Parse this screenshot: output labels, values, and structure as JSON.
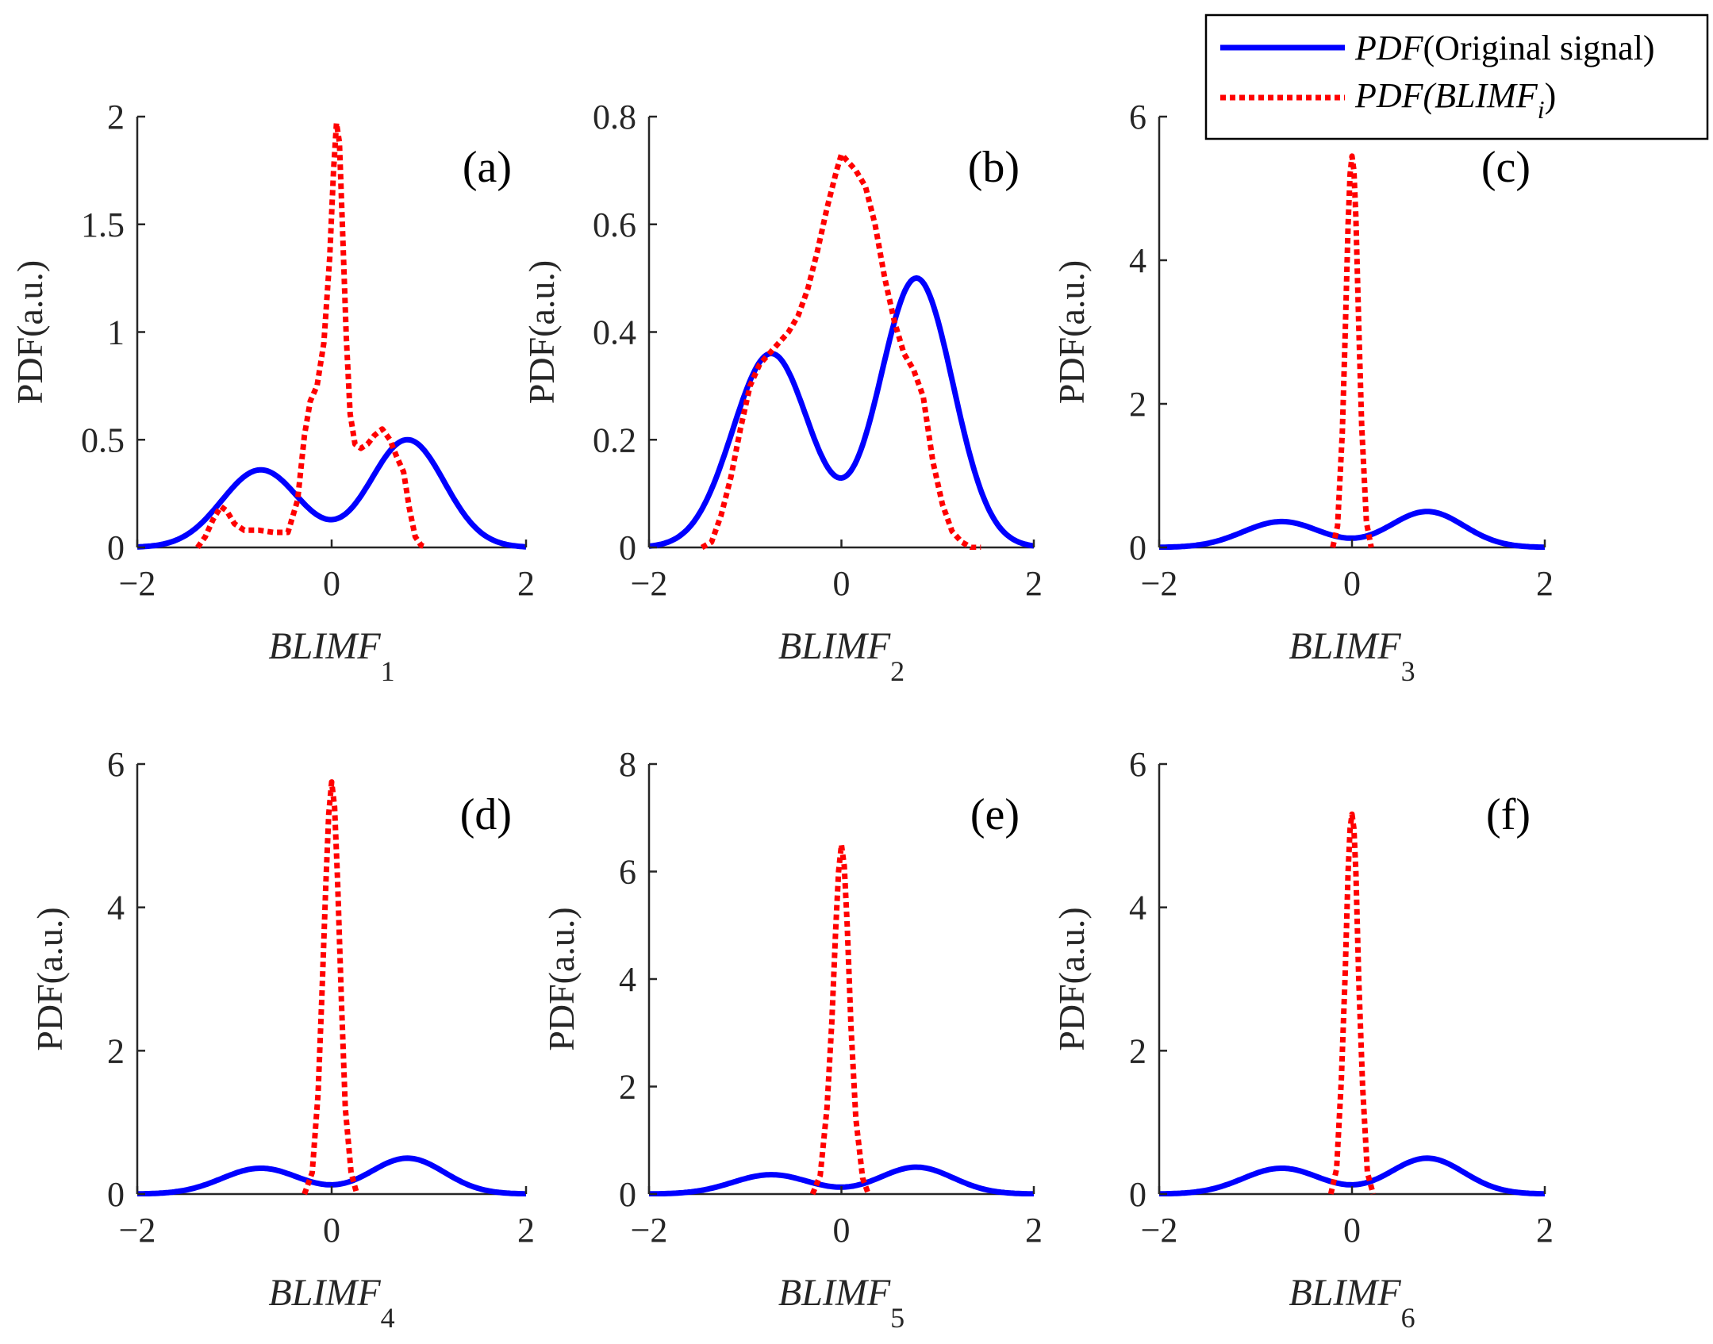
{
  "figure": {
    "legend": {
      "entries": [
        {
          "name_italic": "PDF",
          "name_rest": "(Original signal)",
          "color": "#0000ff",
          "style": "solid"
        },
        {
          "name_italic": "PDF",
          "name_rest_italic": "(BLIMF",
          "subscript": "i",
          "close": ")",
          "color": "#ff0000",
          "style": "dotted"
        }
      ]
    }
  },
  "chart_data": [
    {
      "type": "line",
      "label": "(a)",
      "ylabel": "PDF(a.u.)",
      "xlabel": "BLIMF",
      "xlabel_sub": "1",
      "xlim": [
        -2,
        2
      ],
      "ylim": [
        0,
        2
      ],
      "xticks": [
        -2,
        0,
        2
      ],
      "xtick_labels": [
        "−2",
        "0",
        "2"
      ],
      "yticks": [
        0,
        0.5,
        1,
        1.5,
        2
      ],
      "ytick_labels": [
        "0",
        "0.5",
        "1",
        "1.5",
        "2"
      ],
      "series": [
        {
          "name": "PDF(Original signal)",
          "color": "#0000ff",
          "style": "solid",
          "kind": "bimodal"
        },
        {
          "name": "PDF(BLIMF_i)",
          "color": "#ff0000",
          "style": "dotted",
          "x": [
            -1.38,
            -1.3,
            -1.22,
            -1.14,
            -1.08,
            -1.0,
            -0.9,
            -0.75,
            -0.6,
            -0.45,
            -0.35,
            -0.28,
            -0.22,
            -0.15,
            -0.08,
            -0.02,
            0.02,
            0.05,
            0.08,
            0.11,
            0.15,
            0.19,
            0.24,
            0.3,
            0.37,
            0.44,
            0.52,
            0.6,
            0.67,
            0.74,
            0.8,
            0.86,
            0.92,
            0.98
          ],
          "y": [
            0.0,
            0.05,
            0.13,
            0.19,
            0.17,
            0.11,
            0.08,
            0.08,
            0.07,
            0.07,
            0.22,
            0.52,
            0.68,
            0.75,
            0.95,
            1.35,
            1.75,
            1.97,
            1.88,
            1.5,
            0.98,
            0.62,
            0.48,
            0.46,
            0.48,
            0.52,
            0.55,
            0.5,
            0.42,
            0.35,
            0.18,
            0.05,
            0.01,
            0.0
          ]
        }
      ]
    },
    {
      "type": "line",
      "label": "(b)",
      "ylabel": "PDF(a.u.)",
      "xlabel": "BLIMF",
      "xlabel_sub": "2",
      "xlim": [
        -2,
        2
      ],
      "ylim": [
        0,
        0.8
      ],
      "xticks": [
        -2,
        0,
        2
      ],
      "xtick_labels": [
        "−2",
        "0",
        "2"
      ],
      "yticks": [
        0,
        0.2,
        0.4,
        0.6,
        0.8
      ],
      "ytick_labels": [
        "0",
        "0.2",
        "0.4",
        "0.6",
        "0.8"
      ],
      "series": [
        {
          "name": "PDF(Original signal)",
          "color": "#0000ff",
          "style": "solid",
          "kind": "bimodal"
        },
        {
          "name": "PDF(BLIMF_i)",
          "color": "#ff0000",
          "style": "dotted",
          "x": [
            -1.45,
            -1.35,
            -1.25,
            -1.15,
            -1.05,
            -0.95,
            -0.85,
            -0.75,
            -0.65,
            -0.55,
            -0.45,
            -0.35,
            -0.25,
            -0.15,
            -0.05,
            0.0,
            0.05,
            0.15,
            0.25,
            0.35,
            0.45,
            0.55,
            0.65,
            0.75,
            0.85,
            0.95,
            1.05,
            1.15,
            1.25,
            1.35,
            1.45
          ],
          "y": [
            0.0,
            0.01,
            0.06,
            0.13,
            0.22,
            0.3,
            0.34,
            0.36,
            0.38,
            0.4,
            0.43,
            0.48,
            0.55,
            0.63,
            0.7,
            0.73,
            0.72,
            0.7,
            0.67,
            0.6,
            0.5,
            0.42,
            0.36,
            0.33,
            0.28,
            0.16,
            0.08,
            0.03,
            0.01,
            0.0,
            0.0
          ]
        }
      ]
    },
    {
      "type": "line",
      "label": "(c)",
      "ylabel": "PDF(a.u.)",
      "xlabel": "BLIMF",
      "xlabel_sub": "3",
      "xlim": [
        -2,
        2
      ],
      "ylim": [
        0,
        6
      ],
      "xticks": [
        -2,
        0,
        2
      ],
      "xtick_labels": [
        "−2",
        "0",
        "2"
      ],
      "yticks": [
        0,
        2,
        4,
        6
      ],
      "ytick_labels": [
        "0",
        "2",
        "4",
        "6"
      ],
      "series": [
        {
          "name": "PDF(Original signal)",
          "color": "#0000ff",
          "style": "solid",
          "kind": "bimodal"
        },
        {
          "name": "PDF(BLIMF_i)",
          "color": "#ff0000",
          "style": "dotted",
          "x": [
            -0.2,
            -0.15,
            -0.1,
            -0.07,
            -0.04,
            -0.02,
            0.0,
            0.02,
            0.04,
            0.07,
            0.1,
            0.15,
            0.2
          ],
          "y": [
            0.0,
            0.3,
            1.6,
            3.0,
            4.5,
            5.2,
            5.45,
            5.25,
            4.6,
            3.1,
            1.7,
            0.35,
            0.0
          ]
        }
      ]
    },
    {
      "type": "line",
      "label": "(d)",
      "ylabel": "PDF(a.u.)",
      "xlabel": "BLIMF",
      "xlabel_sub": "4",
      "xlim": [
        -2,
        2
      ],
      "ylim": [
        0,
        6
      ],
      "xticks": [
        -2,
        0,
        2
      ],
      "xtick_labels": [
        "−2",
        "0",
        "2"
      ],
      "yticks": [
        0,
        2,
        4,
        6
      ],
      "ytick_labels": [
        "0",
        "2",
        "4",
        "6"
      ],
      "series": [
        {
          "name": "PDF(Original signal)",
          "color": "#0000ff",
          "style": "solid",
          "kind": "bimodal"
        },
        {
          "name": "PDF(BLIMF_i)",
          "color": "#ff0000",
          "style": "dotted",
          "x": [
            -0.28,
            -0.2,
            -0.14,
            -0.1,
            -0.06,
            -0.03,
            0.0,
            0.03,
            0.06,
            0.1,
            0.14,
            0.2,
            0.26
          ],
          "y": [
            0.0,
            0.3,
            1.4,
            2.8,
            4.3,
            5.3,
            5.75,
            5.4,
            4.4,
            2.7,
            1.2,
            0.3,
            0.0
          ]
        }
      ]
    },
    {
      "type": "line",
      "label": "(e)",
      "ylabel": "PDF(a.u.)",
      "xlabel": "BLIMF",
      "xlabel_sub": "5",
      "xlim": [
        -2,
        2
      ],
      "ylim": [
        0,
        8
      ],
      "xticks": [
        -2,
        0,
        2
      ],
      "xtick_labels": [
        "−2",
        "0",
        "2"
      ],
      "yticks": [
        0,
        2,
        4,
        6,
        8
      ],
      "ytick_labels": [
        "0",
        "2",
        "4",
        "6",
        "8"
      ],
      "series": [
        {
          "name": "PDF(Original signal)",
          "color": "#0000ff",
          "style": "solid",
          "kind": "bimodal"
        },
        {
          "name": "PDF(BLIMF_i)",
          "color": "#ff0000",
          "style": "dotted",
          "x": [
            -0.3,
            -0.22,
            -0.15,
            -0.1,
            -0.06,
            -0.03,
            0.0,
            0.03,
            0.06,
            0.1,
            0.15,
            0.22,
            0.28
          ],
          "y": [
            0.0,
            0.35,
            1.6,
            3.2,
            4.9,
            6.0,
            6.5,
            6.1,
            5.0,
            3.1,
            1.4,
            0.3,
            0.0
          ]
        }
      ]
    },
    {
      "type": "line",
      "label": "(f)",
      "ylabel": "PDF(a.u.)",
      "xlabel": "BLIMF",
      "xlabel_sub": "6",
      "xlim": [
        -2,
        2
      ],
      "ylim": [
        0,
        6
      ],
      "xticks": [
        -2,
        0,
        2
      ],
      "xtick_labels": [
        "−2",
        "0",
        "2"
      ],
      "yticks": [
        0,
        2,
        4,
        6
      ],
      "ytick_labels": [
        "0",
        "2",
        "4",
        "6"
      ],
      "series": [
        {
          "name": "PDF(Original signal)",
          "color": "#0000ff",
          "style": "solid",
          "kind": "bimodal"
        },
        {
          "name": "PDF(BLIMF_i)",
          "color": "#ff0000",
          "style": "dotted",
          "x": [
            -0.22,
            -0.16,
            -0.11,
            -0.07,
            -0.04,
            -0.02,
            0.0,
            0.02,
            0.04,
            0.07,
            0.11,
            0.16,
            0.22
          ],
          "y": [
            0.0,
            0.35,
            1.6,
            3.1,
            4.5,
            5.1,
            5.3,
            5.1,
            4.5,
            3.0,
            1.5,
            0.3,
            0.0
          ]
        }
      ]
    }
  ]
}
